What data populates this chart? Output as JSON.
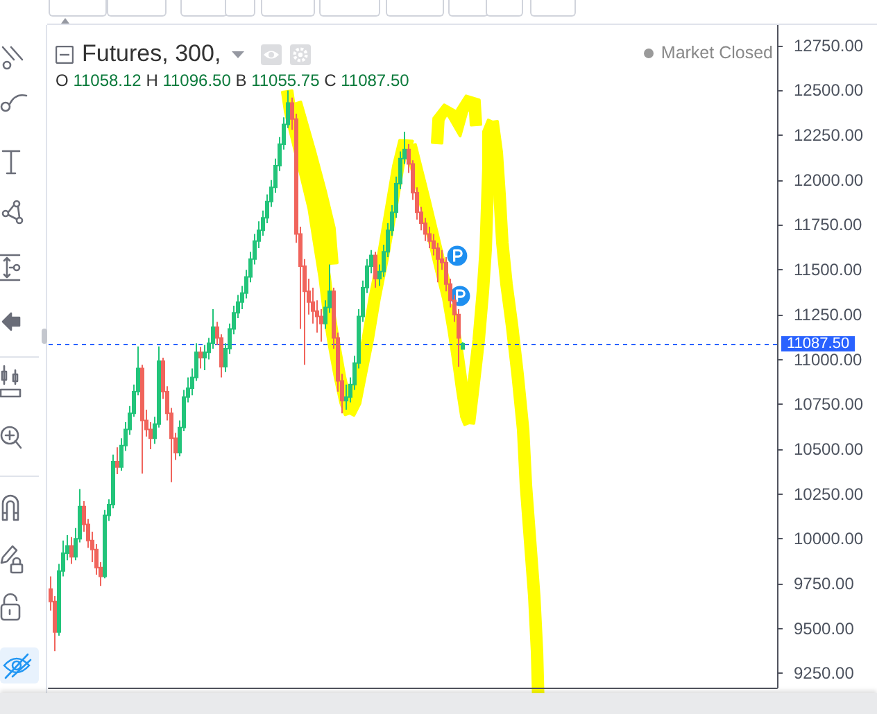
{
  "chart_data": {
    "type": "candlestick",
    "title": "Futures, 300,",
    "annotations": [
      "O 11058.12 H 11096.50 B 11055.75 C 11087.50",
      "Market Closed"
    ],
    "categories": [
      null,
      null,
      null,
      null,
      null,
      null,
      null,
      null,
      null,
      null,
      null,
      null,
      null,
      null,
      null,
      null,
      null,
      null,
      null,
      null,
      null,
      null,
      null,
      null,
      null,
      null,
      null,
      null,
      null,
      null,
      null,
      null,
      null,
      null,
      null,
      null,
      null,
      null,
      null,
      null,
      null,
      null,
      null,
      null,
      null,
      null,
      null,
      null,
      null,
      null,
      null,
      null,
      null,
      null,
      null,
      null,
      null,
      null,
      null,
      null,
      null,
      null,
      null,
      null,
      null,
      null,
      null,
      null,
      null,
      null,
      null,
      null,
      null,
      null,
      null,
      null,
      null,
      null,
      null,
      null,
      null,
      null,
      null,
      null,
      null,
      null,
      null,
      null,
      null,
      null,
      null,
      null,
      null,
      null,
      null,
      null,
      null,
      null,
      null,
      null,
      null,
      null,
      null,
      null,
      null,
      null,
      null,
      null,
      null,
      null,
      null,
      null,
      null,
      null,
      null,
      null,
      null,
      null,
      null,
      null,
      null,
      null,
      null,
      null,
      null,
      null,
      null,
      null,
      null,
      null,
      null,
      null,
      null,
      null,
      null,
      null,
      null,
      null,
      null,
      null,
      null,
      null,
      null,
      null,
      null,
      null,
      null,
      null,
      null,
      null,
      null,
      null,
      null,
      null,
      null,
      null,
      null,
      null,
      null,
      null,
      null,
      null,
      null,
      null,
      null,
      null,
      null,
      null,
      null,
      null,
      null,
      null,
      null,
      null,
      null
    ],
    "ohlc": [
      [
        9720,
        9790,
        9600,
        9650
      ],
      [
        9650,
        9680,
        9374,
        9480
      ],
      [
        9480,
        9860,
        9460,
        9820
      ],
      [
        9820,
        9990,
        9790,
        9920
      ],
      [
        9920,
        10020,
        9880,
        9960
      ],
      [
        9960,
        10010,
        9860,
        9900
      ],
      [
        9900,
        10060,
        9880,
        10000
      ],
      [
        10000,
        10277,
        9980,
        10180
      ],
      [
        10180,
        10210,
        10040,
        10080
      ],
      [
        10080,
        10110,
        9950,
        9990
      ],
      [
        9990,
        10040,
        9870,
        9940
      ],
      [
        9940,
        9970,
        9800,
        9840
      ],
      [
        9840,
        9870,
        9737,
        9790
      ],
      [
        9790,
        10160,
        9780,
        10130
      ],
      [
        10130,
        10220,
        10100,
        10190
      ],
      [
        10190,
        10470,
        10170,
        10430
      ],
      [
        10430,
        10510,
        10360,
        10400
      ],
      [
        10400,
        10560,
        10380,
        10520
      ],
      [
        10520,
        10650,
        10490,
        10610
      ],
      [
        10610,
        10740,
        10580,
        10700
      ],
      [
        10700,
        10860,
        10680,
        10820
      ],
      [
        10820,
        11073,
        10800,
        10950
      ],
      [
        10950,
        10970,
        10363,
        10660
      ],
      [
        10660,
        10720,
        10570,
        10610
      ],
      [
        10610,
        10650,
        10500,
        10560
      ],
      [
        10560,
        10680,
        10530,
        10640
      ],
      [
        10640,
        11073,
        10620,
        10990
      ],
      [
        10990,
        11010,
        10780,
        10820
      ],
      [
        10820,
        10850,
        10660,
        10700
      ],
      [
        10700,
        10730,
        10316,
        10560
      ],
      [
        10560,
        10590,
        10440,
        10480
      ],
      [
        10480,
        10660,
        10460,
        10620
      ],
      [
        10620,
        10830,
        10600,
        10790
      ],
      [
        10790,
        10900,
        10760,
        10840
      ],
      [
        10840,
        10950,
        10800,
        10900
      ],
      [
        10900,
        11090,
        10880,
        11040
      ],
      [
        11040,
        11070,
        10950,
        11010
      ],
      [
        11010,
        11080,
        10940,
        11040
      ],
      [
        11040,
        11120,
        11000,
        11090
      ],
      [
        11090,
        11280,
        11060,
        11180
      ],
      [
        11180,
        11210,
        11080,
        11120
      ],
      [
        11120,
        11140,
        10900,
        10960
      ],
      [
        10960,
        11090,
        10930,
        11060
      ],
      [
        11060,
        11200,
        11030,
        11170
      ],
      [
        11170,
        11300,
        11140,
        11260
      ],
      [
        11260,
        11360,
        11230,
        11320
      ],
      [
        11320,
        11410,
        11280,
        11370
      ],
      [
        11370,
        11500,
        11340,
        11460
      ],
      [
        11460,
        11600,
        11430,
        11560
      ],
      [
        11560,
        11700,
        11530,
        11660
      ],
      [
        11660,
        11770,
        11620,
        11720
      ],
      [
        11720,
        11830,
        11690,
        11790
      ],
      [
        11790,
        11920,
        11760,
        11880
      ],
      [
        11880,
        12000,
        11850,
        11960
      ],
      [
        11960,
        12120,
        11930,
        12080
      ],
      [
        12080,
        12240,
        12050,
        12200
      ],
      [
        12200,
        12350,
        12170,
        12310
      ],
      [
        12310,
        12500,
        12290,
        12430
      ],
      [
        12430,
        12460,
        12280,
        12340
      ],
      [
        12340,
        12370,
        11650,
        11700
      ],
      [
        11700,
        11740,
        11170,
        11520
      ],
      [
        11520,
        11560,
        10970,
        11380
      ],
      [
        11380,
        11450,
        11250,
        11320
      ],
      [
        11320,
        11400,
        11200,
        11270
      ],
      [
        11270,
        11330,
        11150,
        11240
      ],
      [
        11240,
        11280,
        11100,
        11200
      ],
      [
        11200,
        11330,
        11170,
        11290
      ],
      [
        11290,
        11530,
        11260,
        11380
      ],
      [
        11380,
        11400,
        11060,
        11120
      ],
      [
        11120,
        11150,
        10820,
        10880
      ],
      [
        10880,
        10920,
        10700,
        10770
      ],
      [
        10770,
        10860,
        10720,
        10790
      ],
      [
        10790,
        10900,
        10760,
        10860
      ],
      [
        10860,
        11020,
        10830,
        10980
      ],
      [
        10980,
        11280,
        10950,
        11240
      ],
      [
        11240,
        11440,
        11210,
        11400
      ],
      [
        11400,
        11560,
        11370,
        11520
      ],
      [
        11520,
        11610,
        11480,
        11580
      ],
      [
        11580,
        11600,
        11400,
        11450
      ],
      [
        11450,
        11530,
        11410,
        11490
      ],
      [
        11490,
        11640,
        11460,
        11600
      ],
      [
        11600,
        11760,
        11570,
        11720
      ],
      [
        11720,
        11860,
        11690,
        11820
      ],
      [
        11820,
        12020,
        11790,
        11980
      ],
      [
        11980,
        12160,
        11950,
        12120
      ],
      [
        12120,
        12270,
        12090,
        12170
      ],
      [
        12170,
        12200,
        12040,
        12090
      ],
      [
        12090,
        12110,
        11890,
        11930
      ],
      [
        11930,
        11960,
        11780,
        11820
      ],
      [
        11820,
        11850,
        11720,
        11760
      ],
      [
        11760,
        11790,
        11660,
        11700
      ],
      [
        11700,
        11740,
        11620,
        11660
      ],
      [
        11660,
        11700,
        11580,
        11620
      ],
      [
        11620,
        11650,
        11430,
        11560
      ],
      [
        11560,
        11610,
        11500,
        11540
      ],
      [
        11540,
        11570,
        11380,
        11420
      ],
      [
        11420,
        11450,
        11290,
        11330
      ],
      [
        11330,
        11360,
        11210,
        11250
      ],
      [
        11250,
        11280,
        10960,
        11120
      ],
      [
        11058.12,
        11096.5,
        11055.75,
        11087.5
      ],
      null,
      null,
      null,
      null,
      null,
      null,
      null,
      null,
      null,
      null,
      null,
      null,
      null,
      null,
      null,
      null,
      null,
      null,
      null,
      null,
      null,
      null,
      null,
      null,
      null,
      null,
      null,
      null,
      null,
      null,
      null,
      null,
      null,
      null,
      null,
      null,
      null,
      null,
      null,
      null,
      null,
      null,
      null,
      null,
      null,
      null,
      null,
      null,
      null,
      null,
      null,
      null,
      null,
      null,
      null,
      null,
      null,
      null,
      null,
      null,
      null,
      null,
      null,
      null,
      null,
      null,
      null,
      null,
      null,
      null,
      null,
      null,
      null,
      null,
      null
    ],
    "colors": [
      "#f0645c",
      "#f0645c",
      "#22c47a",
      "#22c47a",
      "#22c47a",
      "#f0645c",
      "#22c47a",
      "#22c47a",
      "#f0645c",
      "#f0645c",
      "#f0645c",
      "#f0645c",
      "#f0645c",
      "#22c47a",
      "#22c47a",
      "#22c47a",
      "#f0645c",
      "#22c47a",
      "#22c47a",
      "#22c47a",
      "#22c47a",
      "#22c47a",
      "#f0645c",
      "#f0645c",
      "#f0645c",
      "#22c47a",
      "#22c47a",
      "#f0645c",
      "#f0645c",
      "#f0645c",
      "#f0645c",
      "#22c47a",
      "#22c47a",
      "#22c47a",
      "#22c47a",
      "#22c47a",
      "#f0645c",
      "#22c47a",
      "#22c47a",
      "#22c47a",
      "#f0645c",
      "#f0645c",
      "#22c47a",
      "#22c47a",
      "#22c47a",
      "#22c47a",
      "#22c47a",
      "#22c47a",
      "#22c47a",
      "#22c47a",
      "#22c47a",
      "#22c47a",
      "#22c47a",
      "#22c47a",
      "#22c47a",
      "#22c47a",
      "#22c47a",
      "#22c47a",
      "#f0645c",
      "#f0645c",
      "#f0645c",
      "#f0645c",
      "#f0645c",
      "#f0645c",
      "#f0645c",
      "#f0645c",
      "#22c47a",
      "#22c47a",
      "#f0645c",
      "#f0645c",
      "#f0645c",
      "#22c47a",
      "#22c47a",
      "#22c47a",
      "#22c47a",
      "#22c47a",
      "#22c47a",
      "#22c47a",
      "#f0645c",
      "#22c47a",
      "#22c47a",
      "#22c47a",
      "#22c47a",
      "#22c47a",
      "#22c47a",
      "#22c47a",
      "#f0645c",
      "#f0645c",
      "#f0645c",
      "#f0645c",
      "#f0645c",
      "#f0645c",
      "#f0645c",
      "#f0645c",
      "#f0645c",
      "#f0645c",
      "#f0645c",
      "#f0645c",
      "#f0645c",
      "#22c47a",
      null,
      null,
      null,
      null,
      null,
      null,
      null,
      null,
      null,
      null,
      null,
      null,
      null,
      null,
      null,
      null,
      null,
      null,
      null,
      null,
      null,
      null,
      null,
      null,
      null,
      null,
      null,
      null,
      null,
      null,
      null,
      null,
      null,
      null,
      null,
      null,
      null,
      null,
      null,
      null,
      null,
      null,
      null,
      null,
      null,
      null,
      null,
      null,
      null,
      null,
      null,
      null,
      null,
      null,
      null,
      null,
      null,
      null,
      null,
      null,
      null,
      null,
      null,
      null,
      null,
      null,
      null,
      null,
      null,
      null,
      null,
      null,
      null,
      null,
      null
    ],
    "ylim": [
      9170,
      12865
    ],
    "yticks": [
      {
        "value": 9250,
        "label": "9250.00"
      },
      {
        "value": 9500,
        "label": "9500.00"
      },
      {
        "value": 9750,
        "label": "9750.00"
      },
      {
        "value": 10000,
        "label": "10000.00"
      },
      {
        "value": 10250,
        "label": "10250.00"
      },
      {
        "value": 10500,
        "label": "10500.00"
      },
      {
        "value": 10750,
        "label": "10750.00"
      },
      {
        "value": 11000,
        "label": "11000.00"
      },
      {
        "value": 11250,
        "label": "11250.00"
      },
      {
        "value": 11500,
        "label": "11500.00"
      },
      {
        "value": 11750,
        "label": "11750.00"
      },
      {
        "value": 12000,
        "label": "12000.00"
      },
      {
        "value": 12250,
        "label": "12250.00"
      },
      {
        "value": 12500,
        "label": "12500.00"
      },
      {
        "value": 12750,
        "label": "12750.00"
      }
    ],
    "ref_lines": [
      {
        "axis": "y",
        "value": 11087.5,
        "label": "11087.50",
        "color": "#2962ff",
        "line_style": "dashed"
      }
    ],
    "tick_labels": "y"
  }
}
